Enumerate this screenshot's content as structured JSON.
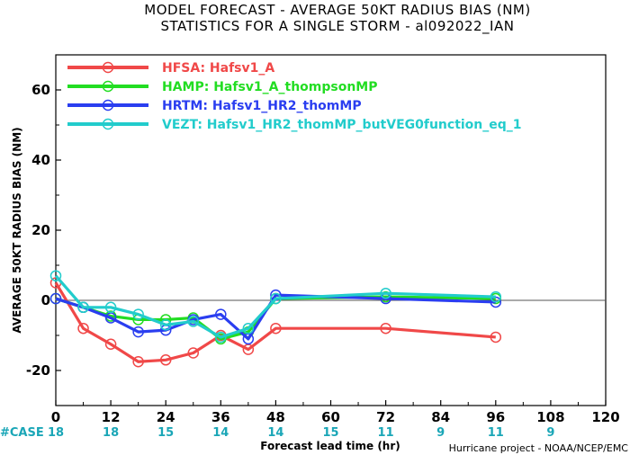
{
  "chart_data": {
    "type": "line",
    "title_lines": [
      "MODEL FORECAST - AVERAGE 50KT RADIUS BIAS (NM)",
      "STATISTICS FOR A SINGLE STORM - al092022_IAN"
    ],
    "xlabel": "Forecast lead time (hr)",
    "ylabel": "AVERAGE 50KT RADIUS BIAS (NM)",
    "xlim": [
      0,
      120
    ],
    "ylim": [
      -30,
      70
    ],
    "x_ticks": [
      0,
      12,
      24,
      36,
      48,
      60,
      72,
      84,
      96,
      108,
      120
    ],
    "y_ticks": [
      -20,
      0,
      20,
      40,
      60
    ],
    "reference_line": 0,
    "legend_position": "top-left",
    "series": [
      {
        "name": "HFSA: Hafsv1_A",
        "color": "#f04848",
        "points": [
          [
            0,
            5
          ],
          [
            6,
            -8
          ],
          [
            12,
            -12.5
          ],
          [
            18,
            -17.5
          ],
          [
            24,
            -17
          ],
          [
            30,
            -15
          ],
          [
            36,
            -10
          ],
          [
            42,
            -14
          ],
          [
            48,
            -8
          ],
          [
            72,
            -8
          ],
          [
            96,
            -10.5
          ]
        ]
      },
      {
        "name": "HAMP: Hafsv1_A_thompsonMP",
        "color": "#22dd22",
        "points": [
          [
            0,
            0.5
          ],
          [
            6,
            -2
          ],
          [
            12,
            -4.5
          ],
          [
            18,
            -5.5
          ],
          [
            24,
            -5.5
          ],
          [
            30,
            -5
          ],
          [
            36,
            -11
          ],
          [
            42,
            -9
          ],
          [
            48,
            0.5
          ],
          [
            72,
            1
          ],
          [
            96,
            0.5
          ]
        ]
      },
      {
        "name": "HRTM: Hafsv1_HR2_thomMP",
        "color": "#2a3ef0",
        "points": [
          [
            0,
            0.5
          ],
          [
            6,
            -2
          ],
          [
            12,
            -5
          ],
          [
            18,
            -9
          ],
          [
            24,
            -8.5
          ],
          [
            30,
            -5.5
          ],
          [
            36,
            -4
          ],
          [
            42,
            -11
          ],
          [
            48,
            1.5
          ],
          [
            72,
            0.5
          ],
          [
            96,
            -0.5
          ]
        ]
      },
      {
        "name": "VEZT: Hafsv1_HR2_thomMP_butVEG0function_eq_1",
        "color": "#22cccc",
        "points": [
          [
            0,
            7
          ],
          [
            6,
            -2
          ],
          [
            12,
            -2
          ],
          [
            18,
            -4
          ],
          [
            24,
            -7
          ],
          [
            30,
            -6
          ],
          [
            36,
            -10.5
          ],
          [
            42,
            -8
          ],
          [
            48,
            0.5
          ],
          [
            72,
            2
          ],
          [
            96,
            1
          ]
        ]
      }
    ],
    "case_label": "#CASE",
    "case_counts": [
      {
        "x": 0,
        "n": "18"
      },
      {
        "x": 12,
        "n": "18"
      },
      {
        "x": 24,
        "n": "15"
      },
      {
        "x": 36,
        "n": "14"
      },
      {
        "x": 48,
        "n": "14"
      },
      {
        "x": 60,
        "n": "15"
      },
      {
        "x": 72,
        "n": "11"
      },
      {
        "x": 84,
        "n": "9"
      },
      {
        "x": 96,
        "n": "11"
      },
      {
        "x": 108,
        "n": "9"
      }
    ],
    "credit": "Hurricane project - NOAA/NCEP/EMC"
  }
}
